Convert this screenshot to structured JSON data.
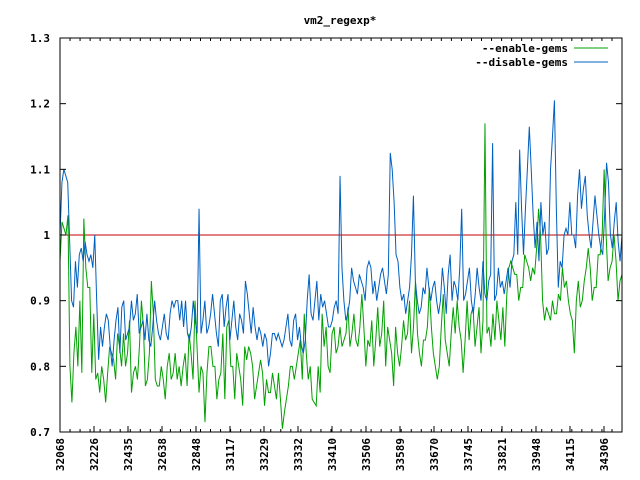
{
  "chart_data": {
    "type": "line",
    "title": "vm2_regexp*",
    "xlabel": "",
    "ylabel": "",
    "ylim": [
      0.7,
      1.3
    ],
    "yticks": [
      0.7,
      0.8,
      0.9,
      1,
      1.1,
      1.2,
      1.3
    ],
    "ytick_labels": [
      "0.7",
      "0.8",
      "0.9",
      "1",
      "1.1",
      "1.2",
      "1.3"
    ],
    "xtick_labels": [
      "32068",
      "32226",
      "32435",
      "32638",
      "32848",
      "33117",
      "33229",
      "33332",
      "33410",
      "33506",
      "33589",
      "33670",
      "33745",
      "33821",
      "33948",
      "34115",
      "34306"
    ],
    "grid": false,
    "legend_position": "top-right",
    "colors": {
      "enable": "#00a000",
      "disable": "#0060c0",
      "baseline": "#c00000",
      "axis": "#000000"
    },
    "baseline": 1.0,
    "series": [
      {
        "name": "--enable-gems",
        "values": [
          0.96,
          1.02,
          1.01,
          1.0,
          1.03,
          0.8,
          0.745,
          0.82,
          0.86,
          0.8,
          0.9,
          0.79,
          1.025,
          0.95,
          0.92,
          0.92,
          0.79,
          0.88,
          0.78,
          0.79,
          0.76,
          0.8,
          0.78,
          0.745,
          0.79,
          0.83,
          0.82,
          0.81,
          0.78,
          0.85,
          0.83,
          0.8,
          0.85,
          0.8,
          0.82,
          0.87,
          0.76,
          0.79,
          0.8,
          0.78,
          0.83,
          0.9,
          0.86,
          0.77,
          0.78,
          0.82,
          0.93,
          0.88,
          0.78,
          0.77,
          0.77,
          0.8,
          0.78,
          0.75,
          0.8,
          0.82,
          0.78,
          0.79,
          0.82,
          0.78,
          0.8,
          0.77,
          0.8,
          0.82,
          0.77,
          0.85,
          0.82,
          0.78,
          0.9,
          0.83,
          0.76,
          0.8,
          0.79,
          0.715,
          0.79,
          0.83,
          0.83,
          0.8,
          0.8,
          0.75,
          0.78,
          0.79,
          0.85,
          0.75,
          0.86,
          0.87,
          0.8,
          0.8,
          0.75,
          0.82,
          0.8,
          0.78,
          0.74,
          0.83,
          0.81,
          0.83,
          0.82,
          0.8,
          0.75,
          0.77,
          0.79,
          0.81,
          0.79,
          0.74,
          0.78,
          0.76,
          0.76,
          0.79,
          0.77,
          0.75,
          0.79,
          0.75,
          0.705,
          0.73,
          0.75,
          0.77,
          0.8,
          0.8,
          0.78,
          0.8,
          0.82,
          0.84,
          0.78,
          0.88,
          0.82,
          0.78,
          0.8,
          0.75,
          0.745,
          0.74,
          0.8,
          0.76,
          0.88,
          0.83,
          0.86,
          0.8,
          0.79,
          0.85,
          0.86,
          0.82,
          0.83,
          0.86,
          0.83,
          0.84,
          0.85,
          0.89,
          0.83,
          0.85,
          0.88,
          0.84,
          0.83,
          0.86,
          0.91,
          0.86,
          0.8,
          0.84,
          0.83,
          0.87,
          0.8,
          0.84,
          0.89,
          0.83,
          0.85,
          0.9,
          0.8,
          0.86,
          0.84,
          0.82,
          0.77,
          0.86,
          0.82,
          0.8,
          0.83,
          0.87,
          0.84,
          0.85,
          0.9,
          0.82,
          0.86,
          0.93,
          0.85,
          0.82,
          0.8,
          0.84,
          0.84,
          0.86,
          0.92,
          0.86,
          0.82,
          0.8,
          0.78,
          0.8,
          0.86,
          0.91,
          0.84,
          0.82,
          0.8,
          0.85,
          0.89,
          0.85,
          0.9,
          0.86,
          0.84,
          0.79,
          0.84,
          0.9,
          0.84,
          0.88,
          0.89,
          0.83,
          0.86,
          0.89,
          0.82,
          0.87,
          1.17,
          0.85,
          0.86,
          0.83,
          0.88,
          0.84,
          0.9,
          0.87,
          0.84,
          0.89,
          0.83,
          0.91,
          0.95,
          0.96,
          0.95,
          0.94,
          0.94,
          0.9,
          0.92,
          0.92,
          0.97,
          0.96,
          0.95,
          0.93,
          0.95,
          0.94,
          0.98,
          1.04,
          1.0,
          0.9,
          0.87,
          0.89,
          0.88,
          0.87,
          0.9,
          0.88,
          0.88,
          0.91,
          0.9,
          0.95,
          0.92,
          0.93,
          0.9,
          0.88,
          0.87,
          0.82,
          0.9,
          0.93,
          0.89,
          0.9,
          0.93,
          0.95,
          0.98,
          0.95,
          0.9,
          0.92,
          0.92,
          0.97,
          0.97,
          1.0,
          1.1,
          1.0,
          0.93,
          0.95,
          0.96,
          1.0,
          0.96,
          0.9,
          0.93,
          0.94
        ],
        "color": "#00a000"
      },
      {
        "name": "--disable-gems",
        "values": [
          1.0,
          1.08,
          1.1,
          1.09,
          1.08,
          0.99,
          0.9,
          0.89,
          0.96,
          0.92,
          0.97,
          0.98,
          0.96,
          0.99,
          0.97,
          0.96,
          0.97,
          0.95,
          1.0,
          0.9,
          0.81,
          0.86,
          0.83,
          0.86,
          0.88,
          0.87,
          0.83,
          0.8,
          0.84,
          0.87,
          0.89,
          0.82,
          0.89,
          0.9,
          0.84,
          0.85,
          0.86,
          0.9,
          0.87,
          0.88,
          0.91,
          0.85,
          0.86,
          0.87,
          0.84,
          0.88,
          0.84,
          0.83,
          0.86,
          0.9,
          0.87,
          0.85,
          0.84,
          0.86,
          0.88,
          0.85,
          0.84,
          0.88,
          0.9,
          0.89,
          0.9,
          0.9,
          0.87,
          0.9,
          0.86,
          0.9,
          0.85,
          0.84,
          0.86,
          0.9,
          0.87,
          0.85,
          1.04,
          0.85,
          0.87,
          0.9,
          0.85,
          0.86,
          0.88,
          0.91,
          0.88,
          0.85,
          0.83,
          0.9,
          0.91,
          0.86,
          0.89,
          0.91,
          0.84,
          0.87,
          0.9,
          0.86,
          0.84,
          0.88,
          0.87,
          0.85,
          0.93,
          0.91,
          0.88,
          0.85,
          0.89,
          0.86,
          0.84,
          0.86,
          0.85,
          0.83,
          0.85,
          0.84,
          0.8,
          0.82,
          0.85,
          0.85,
          0.84,
          0.85,
          0.84,
          0.83,
          0.84,
          0.86,
          0.88,
          0.84,
          0.83,
          0.87,
          0.88,
          0.84,
          0.86,
          0.83,
          0.82,
          0.84,
          0.9,
          0.94,
          0.88,
          0.87,
          0.9,
          0.93,
          0.87,
          0.91,
          0.89,
          0.9,
          0.88,
          0.86,
          0.86,
          0.87,
          0.89,
          0.9,
          0.88,
          1.09,
          0.95,
          0.9,
          0.87,
          0.88,
          0.9,
          0.95,
          0.93,
          0.92,
          0.91,
          0.94,
          0.93,
          0.92,
          0.9,
          0.95,
          0.96,
          0.95,
          0.91,
          0.93,
          0.9,
          0.92,
          0.94,
          0.95,
          0.93,
          0.91,
          0.94,
          1.125,
          1.1,
          1.05,
          0.97,
          0.96,
          0.92,
          0.9,
          0.91,
          0.88,
          0.9,
          0.92,
          0.97,
          1.06,
          0.93,
          0.9,
          0.88,
          0.89,
          0.92,
          0.91,
          0.95,
          0.92,
          0.9,
          0.92,
          0.93,
          0.9,
          0.88,
          0.9,
          0.95,
          0.92,
          0.88,
          0.94,
          0.97,
          0.9,
          0.93,
          0.92,
          0.9,
          0.95,
          1.04,
          0.9,
          0.91,
          0.93,
          0.95,
          0.9,
          0.88,
          0.91,
          0.95,
          0.92,
          0.9,
          0.96,
          0.91,
          0.9,
          0.93,
          0.94,
          1.14,
          0.9,
          0.91,
          0.95,
          0.92,
          0.93,
          0.91,
          0.93,
          0.95,
          0.92,
          0.96,
          0.97,
          1.05,
          0.97,
          1.13,
          1.04,
          0.97,
          1.04,
          1.1,
          1.165,
          1.1,
          1.03,
          0.98,
          1.02,
          0.96,
          1.05,
          1.0,
          1.02,
          0.97,
          0.98,
          1.1,
          1.15,
          1.205,
          1.04,
          0.92,
          0.96,
          0.95,
          1.0,
          1.01,
          1.0,
          1.05,
          1.0,
          1.0,
          0.98,
          1.06,
          1.1,
          1.04,
          1.07,
          1.09,
          1.03,
          1.0,
          0.98,
          1.02,
          1.06,
          1.03,
          1.0,
          0.98,
          0.97,
          1.03,
          1.11,
          1.08,
          1.0,
          0.98,
          1.02,
          1.05,
          0.99,
          0.96,
          1.0
        ],
        "color": "#0060c0"
      }
    ]
  }
}
